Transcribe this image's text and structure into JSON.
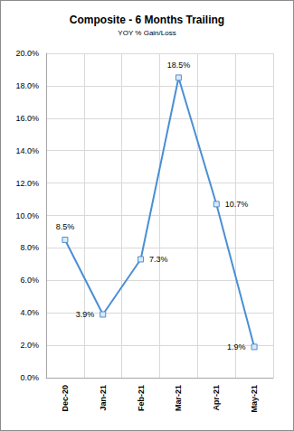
{
  "chart_data": {
    "type": "line",
    "title": "Composite - 6 Months Trailing",
    "subtitle": "YOY % Gain/Loss",
    "categories": [
      "Dec-20",
      "Jan-21",
      "Feb-21",
      "Mar-21",
      "Apr-21",
      "May-21"
    ],
    "values": [
      8.5,
      3.9,
      7.3,
      18.5,
      10.7,
      1.9
    ],
    "value_labels": [
      "8.5%",
      "3.9%",
      "7.3%",
      "18.5%",
      "10.7%",
      "1.9%"
    ],
    "color": "#4a8fd4",
    "marker": "square",
    "ylim": [
      0,
      20
    ],
    "yticks": [
      {
        "value": 0,
        "label": "0.0%"
      },
      {
        "value": 2,
        "label": "2.0%"
      },
      {
        "value": 4,
        "label": "4.0%"
      },
      {
        "value": 6,
        "label": "6.0%"
      },
      {
        "value": 8,
        "label": "8.0%"
      },
      {
        "value": 10,
        "label": "10.0%"
      },
      {
        "value": 12,
        "label": "12.0%"
      },
      {
        "value": 14,
        "label": "14.0%"
      },
      {
        "value": 16,
        "label": "16.0%"
      },
      {
        "value": 18,
        "label": "18.0%"
      },
      {
        "value": 20,
        "label": "20.0%"
      }
    ],
    "grid": true,
    "data_labels": true
  }
}
